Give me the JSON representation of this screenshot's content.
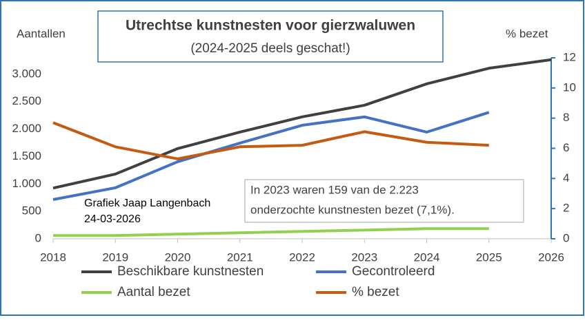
{
  "chart_data": {
    "type": "line",
    "title": "Utrechtse kunstnesten voor gierzwaluwen",
    "subtitle": "(2024-2025 deels geschat!)",
    "y_label": "Aantallen",
    "y2_label": "%  bezet",
    "credit": [
      "Grafiek Jaap Langenbach",
      "24-03-2026"
    ],
    "callout": [
      "In 2023 waren 159 van de 2.223",
      "onderzochte kunstnesten bezet (7,1%)."
    ],
    "x": [
      2018,
      2019,
      2020,
      2021,
      2022,
      2023,
      2024,
      2025,
      2026
    ],
    "xlim": [
      2018,
      2026
    ],
    "xticks": [
      2018,
      2019,
      2020,
      2021,
      2022,
      2023,
      2024,
      2025,
      2026
    ],
    "ylim": [
      0,
      3300
    ],
    "yticks": [
      0,
      500,
      {
        "value": 1000,
        "label": "1.000"
      },
      {
        "value": 1500,
        "label": "1.500"
      },
      {
        "value": 2000,
        "label": "2.000"
      },
      {
        "value": 2500,
        "label": "2.500"
      },
      {
        "value": 3000,
        "label": "3.000"
      }
    ],
    "y2lim": [
      0,
      12
    ],
    "y2ticks": [
      0,
      2,
      4,
      6,
      8,
      10,
      12
    ],
    "y2_axis_color": "#2e75b6",
    "series": [
      {
        "name": "Beschikbare kunstnesten",
        "color": "#404040",
        "values": [
          925,
          1180,
          1645,
          1945,
          2223,
          2435,
          2825,
          3110,
          3265
        ]
      },
      {
        "name": "Gecontroleerd",
        "color": "#4472c4",
        "values": [
          715,
          930,
          1405,
          1745,
          2070,
          2223,
          1945,
          2305,
          null
        ]
      },
      {
        "name": "Aantal bezet",
        "color": "#92d050",
        "values": [
          60,
          60,
          85,
          110,
          135,
          159,
          185,
          185,
          null
        ]
      },
      {
        "name": "% bezet",
        "color": "#c55a11",
        "axis": "y2",
        "values": [
          7.7,
          6.1,
          5.3,
          6.1,
          6.2,
          7.1,
          6.4,
          6.2,
          null
        ]
      }
    ]
  }
}
